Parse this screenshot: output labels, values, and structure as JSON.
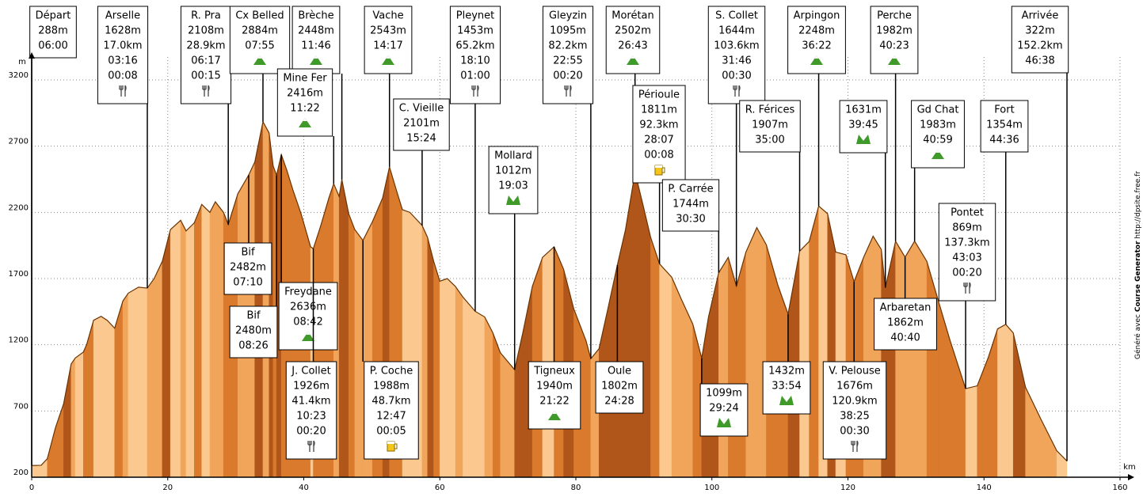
{
  "chart_data": {
    "type": "area",
    "x_label": "km",
    "y_label": "m",
    "x": [
      0,
      1.4,
      2.3,
      3.5,
      4.7,
      5.8,
      6.4,
      7.6,
      8.1,
      9.1,
      10.2,
      11.1,
      12.2,
      13.4,
      14.2,
      15.7,
      17.0,
      18.0,
      19.2,
      20.4,
      21.9,
      22.7,
      23.9,
      25.0,
      26.2,
      27.0,
      28.2,
      28.9,
      30.3,
      31.9,
      32.8,
      34.0,
      34.9,
      35.5,
      36.0,
      36.7,
      37.5,
      38.4,
      39.6,
      41.0,
      41.4,
      42.5,
      43.7,
      44.4,
      45.2,
      45.6,
      46.6,
      47.5,
      48.7,
      50.1,
      51.6,
      52.6,
      53.6,
      54.5,
      55.6,
      57.4,
      58.2,
      59.1,
      60.0,
      61.1,
      62.3,
      63.4,
      65.2,
      66.6,
      67.8,
      68.9,
      71.0,
      72.2,
      73.6,
      75.1,
      76.8,
      78.2,
      79.7,
      81.5,
      82.2,
      83.4,
      84.7,
      86.1,
      87.3,
      88.7,
      89.9,
      91.0,
      92.3,
      94.1,
      95.5,
      97.2,
      98.5,
      99.5,
      101.0,
      102.4,
      103.6,
      105.0,
      106.6,
      108.0,
      109.7,
      111.2,
      112.9,
      114.3,
      115.7,
      117.0,
      118.2,
      119.7,
      120.9,
      122.3,
      123.7,
      124.9,
      125.5,
      127.0,
      128.4,
      129.8,
      131.6,
      133.3,
      135.0,
      137.3,
      139.0,
      140.6,
      142.0,
      143.2,
      144.3,
      146.1,
      148.4,
      150.7,
      152.2
    ],
    "values": [
      288,
      290,
      340,
      575,
      755,
      1055,
      1100,
      1145,
      1205,
      1385,
      1415,
      1385,
      1325,
      1530,
      1590,
      1635,
      1628,
      1700,
      1830,
      2070,
      2140,
      2060,
      2120,
      2260,
      2200,
      2280,
      2200,
      2108,
      2340,
      2482,
      2580,
      2884,
      2800,
      2550,
      2480,
      2636,
      2520,
      2370,
      2190,
      1940,
      1926,
      2100,
      2310,
      2416,
      2320,
      2448,
      2190,
      2070,
      1988,
      2130,
      2310,
      2543,
      2370,
      2220,
      2200,
      2101,
      2010,
      1830,
      1680,
      1700,
      1640,
      1560,
      1453,
      1410,
      1290,
      1140,
      1012,
      1290,
      1640,
      1860,
      1940,
      1770,
      1470,
      1230,
      1095,
      1170,
      1470,
      1802,
      2070,
      2502,
      2250,
      2010,
      1811,
      1710,
      1545,
      1355,
      1099,
      1410,
      1744,
      1860,
      1644,
      1900,
      2085,
      1955,
      1650,
      1432,
      1907,
      1980,
      2248,
      2190,
      1900,
      1880,
      1676,
      1860,
      2020,
      1920,
      1631,
      1982,
      1862,
      1983,
      1830,
      1530,
      1235,
      869,
      890,
      1100,
      1320,
      1354,
      1290,
      880,
      635,
      400,
      322
    ],
    "colors": [
      "#fbc98f",
      "#f0a55a",
      "#d97a2c",
      "#b0561a"
    ],
    "outline_color": "#6b3300",
    "xlim": [
      0,
      160
    ],
    "xticks": [
      0,
      20,
      40,
      60,
      80,
      100,
      120,
      140,
      160
    ],
    "ylim": [
      200,
      3200
    ],
    "yticks": [
      200,
      700,
      1200,
      1700,
      2200,
      2700,
      3200
    ],
    "grid": true,
    "annotations": [
      {
        "x": 0,
        "lines": [
          "Départ",
          "288m",
          "06:00"
        ]
      },
      {
        "x": 17.0,
        "lines": [
          "Arselle",
          "1628m",
          "17.0km",
          "03:16",
          "00:08"
        ],
        "icon": "restaurant"
      },
      {
        "x": 28.9,
        "lines": [
          "R. Pra",
          "2108m",
          "28.9km",
          "06:17",
          "00:15"
        ],
        "icon": "restaurant"
      },
      {
        "x": 34.0,
        "lines": [
          "Cx Belled",
          "2884m",
          "07:55"
        ],
        "icon": "summit"
      },
      {
        "x": 45.6,
        "lines": [
          "Brèche",
          "2448m",
          "11:46"
        ],
        "icon": "summit"
      },
      {
        "x": 44.4,
        "lines": [
          "Mine Fer",
          "2416m",
          "11:22"
        ],
        "icon": "summit"
      },
      {
        "x": 52.6,
        "lines": [
          "Vache",
          "2543m",
          "14:17"
        ],
        "icon": "summit"
      },
      {
        "x": 57.4,
        "lines": [
          "C. Vieille",
          "2101m",
          "15:24"
        ]
      },
      {
        "x": 65.2,
        "lines": [
          "Pleynet",
          "1453m",
          "65.2km",
          "18:10",
          "01:00"
        ],
        "icon": "restaurant"
      },
      {
        "x": 71.0,
        "lines": [
          "Mollard",
          "1012m",
          "19:03"
        ],
        "icon": "pass"
      },
      {
        "x": 82.2,
        "lines": [
          "Gleyzin",
          "1095m",
          "82.2km",
          "22:55",
          "00:20"
        ],
        "icon": "restaurant"
      },
      {
        "x": 88.7,
        "lines": [
          "Morétan",
          "2502m",
          "26:43"
        ],
        "icon": "summit"
      },
      {
        "x": 92.3,
        "lines": [
          "Périoule",
          "1811m",
          "92.3km",
          "28:07",
          "00:08"
        ],
        "icon": "beer"
      },
      {
        "x": 103.6,
        "lines": [
          "S. Collet",
          "1644m",
          "103.6km",
          "31:46",
          "00:30"
        ],
        "icon": "restaurant"
      },
      {
        "x": 115.7,
        "lines": [
          "Arpingon",
          "2248m",
          "36:22"
        ],
        "icon": "summit"
      },
      {
        "x": 101.0,
        "lines": [
          "P. Carrée",
          "1744m",
          "30:30"
        ]
      },
      {
        "x": 112.9,
        "lines": [
          "R. Férices",
          "1907m",
          "35:00"
        ]
      },
      {
        "x": 127.0,
        "lines": [
          "Perche",
          "1982m",
          "40:23"
        ],
        "icon": "summit"
      },
      {
        "x": 125.5,
        "lines": [
          "1631m",
          "39:45"
        ],
        "icon": "pass"
      },
      {
        "x": 129.8,
        "lines": [
          "Gd Chat",
          "1983m",
          "40:59"
        ],
        "icon": "summit"
      },
      {
        "x": 143.2,
        "lines": [
          "Fort",
          "1354m",
          "44:36"
        ]
      },
      {
        "x": 152.2,
        "lines": [
          "Arrivée",
          "322m",
          "152.2km",
          "46:38"
        ]
      },
      {
        "x": 137.3,
        "lines": [
          "Pontet",
          "869m",
          "137.3km",
          "43:03",
          "00:20"
        ],
        "icon": "restaurant"
      },
      {
        "x": 31.9,
        "lines": [
          "Bif",
          "2482m",
          "07:10"
        ]
      },
      {
        "x": 36.0,
        "lines": [
          "Bif",
          "2480m",
          "08:26"
        ]
      },
      {
        "x": 36.7,
        "lines": [
          "Freydane",
          "2636m",
          "08:42"
        ],
        "icon": "summit"
      },
      {
        "x": 41.4,
        "lines": [
          "J. Collet",
          "1926m",
          "41.4km",
          "10:23",
          "00:20"
        ],
        "icon": "restaurant"
      },
      {
        "x": 48.7,
        "lines": [
          "P. Coche",
          "1988m",
          "48.7km",
          "12:47",
          "00:05"
        ],
        "icon": "beer"
      },
      {
        "x": 76.8,
        "lines": [
          "Tigneux",
          "1940m",
          "21:22"
        ],
        "icon": "summit"
      },
      {
        "x": 86.1,
        "lines": [
          "Oule",
          "1802m",
          "24:28"
        ]
      },
      {
        "x": 98.5,
        "lines": [
          "1099m",
          "29:24"
        ],
        "icon": "pass"
      },
      {
        "x": 111.2,
        "lines": [
          "1432m",
          "33:54"
        ],
        "icon": "pass"
      },
      {
        "x": 120.9,
        "lines": [
          "V. Pelouse",
          "1676m",
          "120.9km",
          "38:25",
          "00:30"
        ],
        "icon": "restaurant"
      },
      {
        "x": 128.4,
        "lines": [
          "Arbaretan",
          "1862m",
          "40:40"
        ]
      }
    ]
  },
  "credit": [
    "Généré",
    "avec",
    "Course Generator",
    "http://dpsite.free.fr"
  ]
}
